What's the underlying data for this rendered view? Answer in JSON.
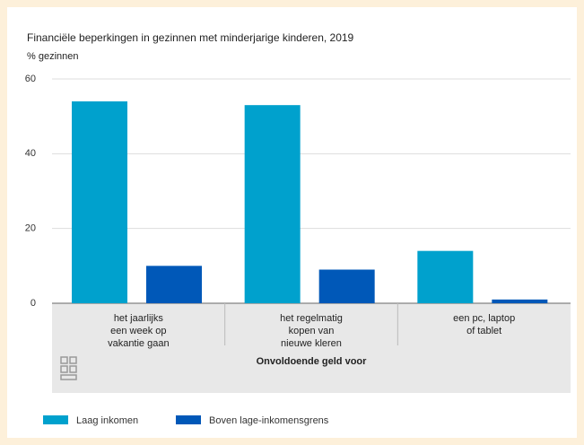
{
  "chart_data": {
    "type": "bar",
    "title": "Financiële beperkingen in gezinnen met minderjarige kinderen, 2019",
    "y_label": "% gezinnen",
    "x_label": "Onvoldoende geld voor",
    "categories": [
      "het jaarlijks\neen week op\nvakantie gaan",
      "het regelmatig\nkopen van\nnieuwe kleren",
      "een pc, laptop\nof tablet"
    ],
    "series": [
      {
        "name": "Laag inkomen",
        "color": "#00a1cd",
        "values": [
          54,
          53,
          14
        ]
      },
      {
        "name": "Boven lage-inkomensgrens",
        "color": "#0058b8",
        "values": [
          10,
          9,
          1
        ]
      }
    ],
    "ylim": [
      0,
      60
    ],
    "yticks": [
      0,
      20,
      40,
      60
    ],
    "grid": true
  }
}
